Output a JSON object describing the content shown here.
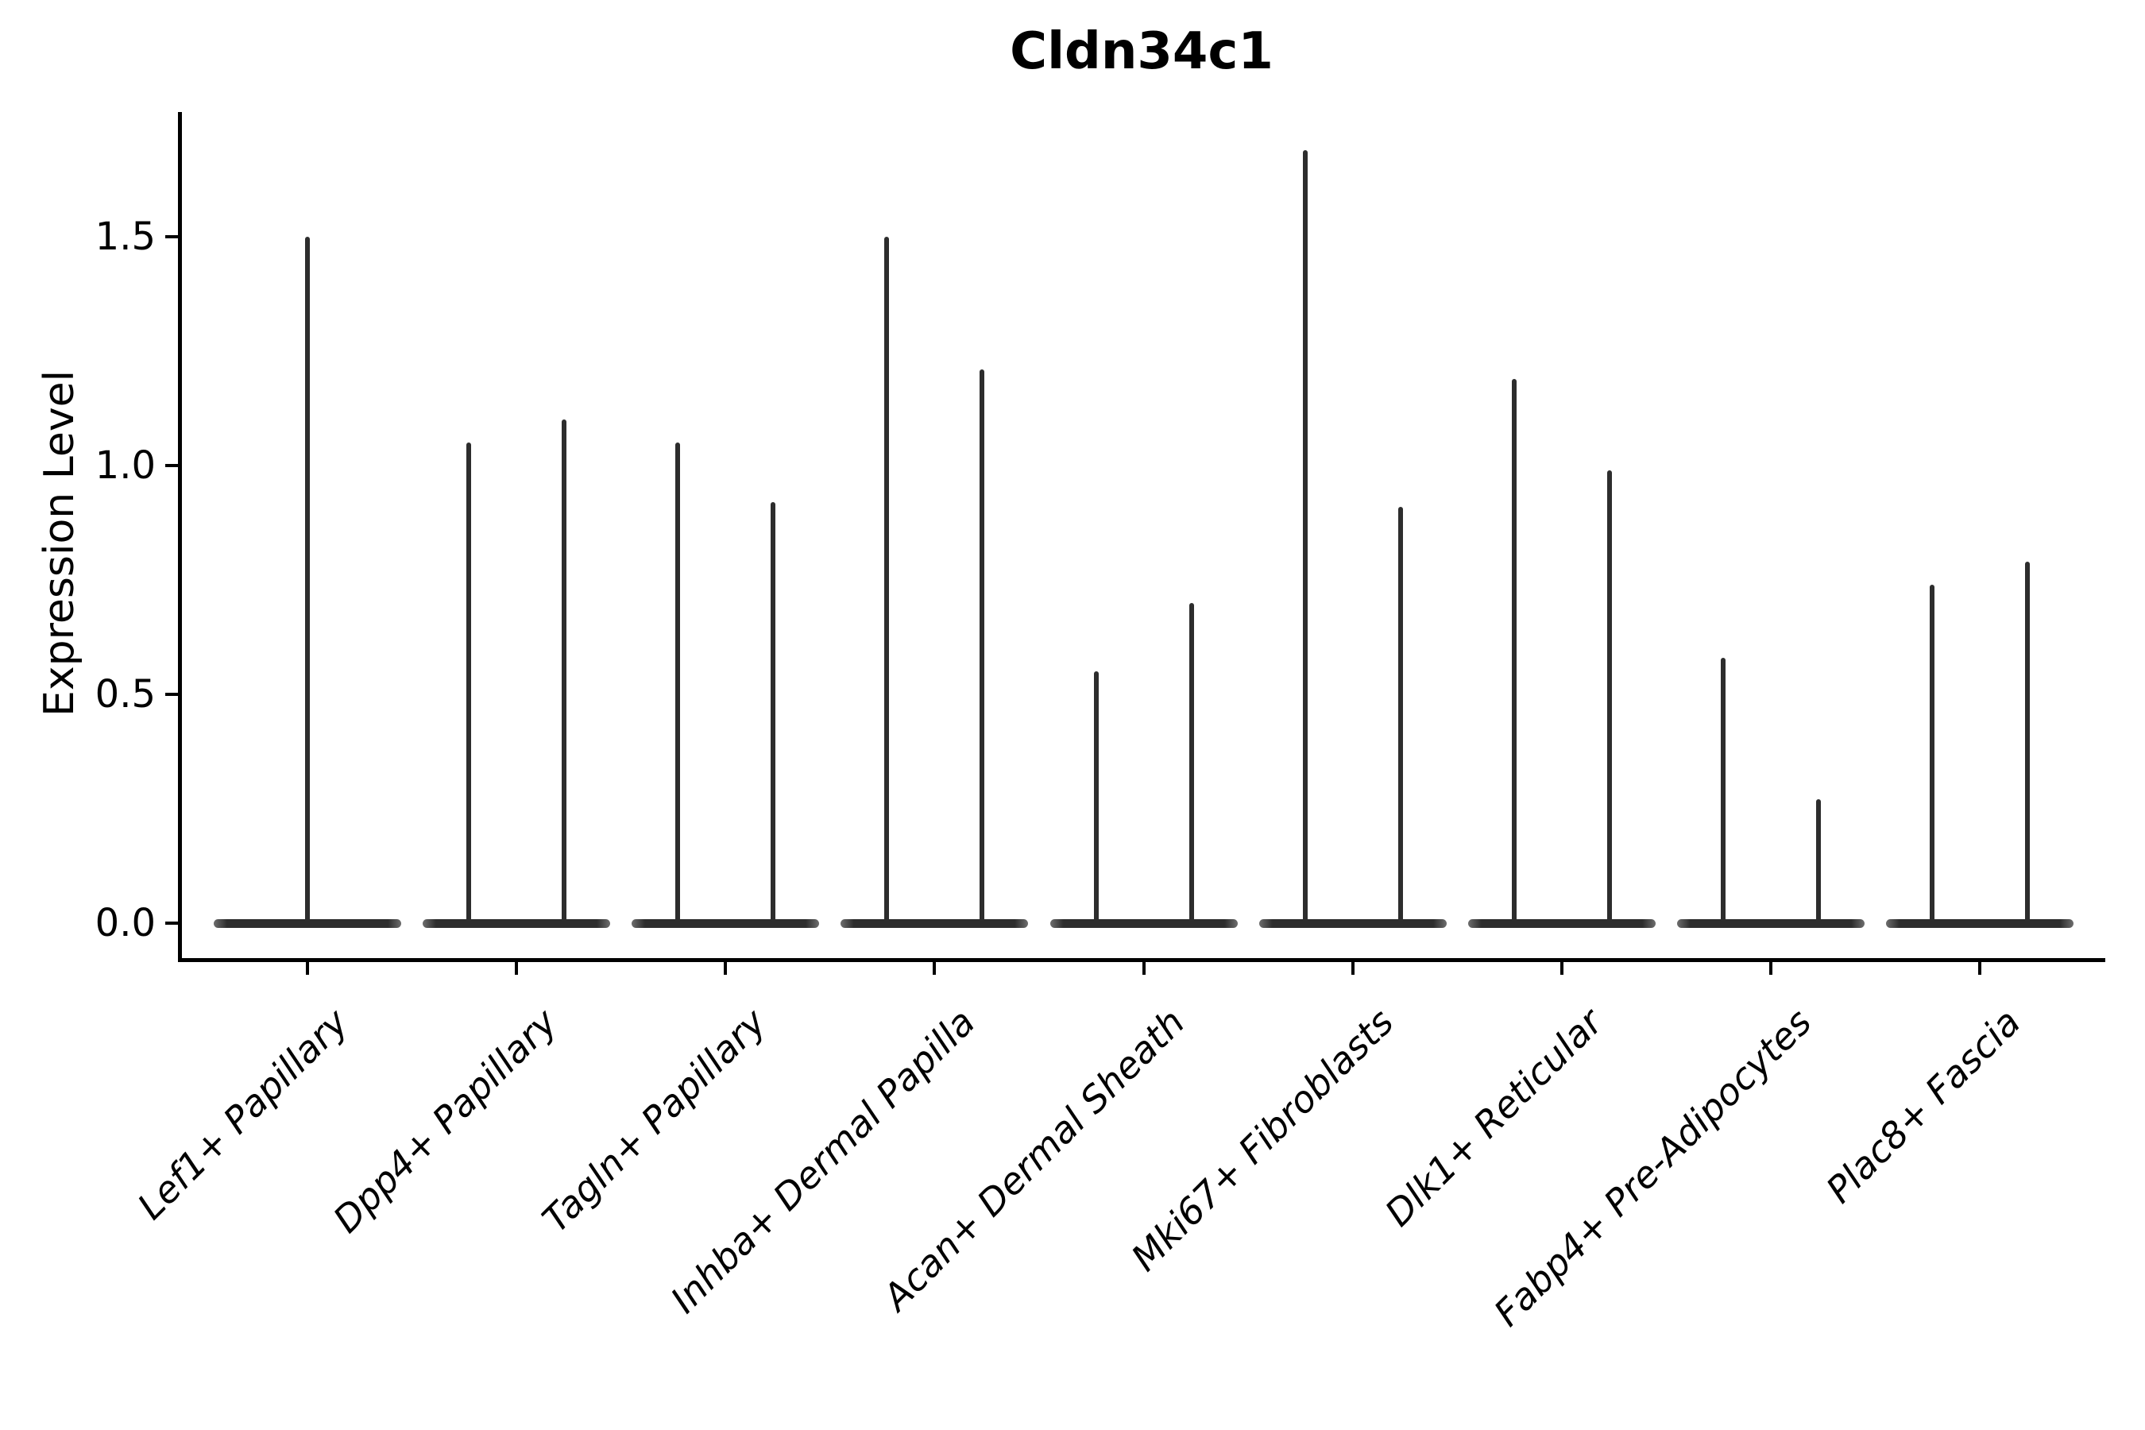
{
  "chart_data": {
    "type": "violin",
    "title": "Cldn34c1",
    "ylabel": "Expression Level",
    "xlabel": "",
    "grid": false,
    "legend": null,
    "background": "#ffffff",
    "ylim": [
      -0.08,
      1.77
    ],
    "yticks": [
      0.0,
      0.5,
      1.0,
      1.5
    ],
    "ytick_labels": [
      "0.0",
      "0.5",
      "1.0",
      "1.5"
    ],
    "categories": [
      "Lef1+ Papillary",
      "Dpp4+ Papillary",
      "Tagln+ Papillary",
      "Inhba+ Dermal Papilla",
      "Acan+ Dermal Sheath",
      "Mki67+ Fibroblasts",
      "Dlk1+ Reticular",
      "Fabp4+ Pre-Adipocytes",
      "Plac8+ Fascia"
    ],
    "violins": [
      {
        "category": "Lef1+ Papillary",
        "bulk_at": 0.0,
        "spike_maxima": [
          1.5
        ]
      },
      {
        "category": "Dpp4+ Papillary",
        "bulk_at": 0.0,
        "spike_maxima": [
          1.05,
          1.1
        ]
      },
      {
        "category": "Tagln+ Papillary",
        "bulk_at": 0.0,
        "spike_maxima": [
          1.05,
          0.92
        ]
      },
      {
        "category": "Inhba+ Dermal Papilla",
        "bulk_at": 0.0,
        "spike_maxima": [
          1.5,
          1.21
        ]
      },
      {
        "category": "Acan+ Dermal Sheath",
        "bulk_at": 0.0,
        "spike_maxima": [
          0.55,
          0.7
        ]
      },
      {
        "category": "Mki67+ Fibroblasts",
        "bulk_at": 0.0,
        "spike_maxima": [
          1.69,
          0.91
        ]
      },
      {
        "category": "Dlk1+ Reticular",
        "bulk_at": 0.0,
        "spike_maxima": [
          1.19,
          0.99
        ]
      },
      {
        "category": "Fabp4+ Pre-Adipocytes",
        "bulk_at": 0.0,
        "spike_maxima": [
          0.58,
          0.27
        ]
      },
      {
        "category": "Plac8+ Fascia",
        "bulk_at": 0.0,
        "spike_maxima": [
          0.74,
          0.79
        ]
      }
    ],
    "colors": {
      "violin": "#2d2d2d",
      "axis": "#000000",
      "text": "#000000",
      "background": "#ffffff"
    }
  }
}
